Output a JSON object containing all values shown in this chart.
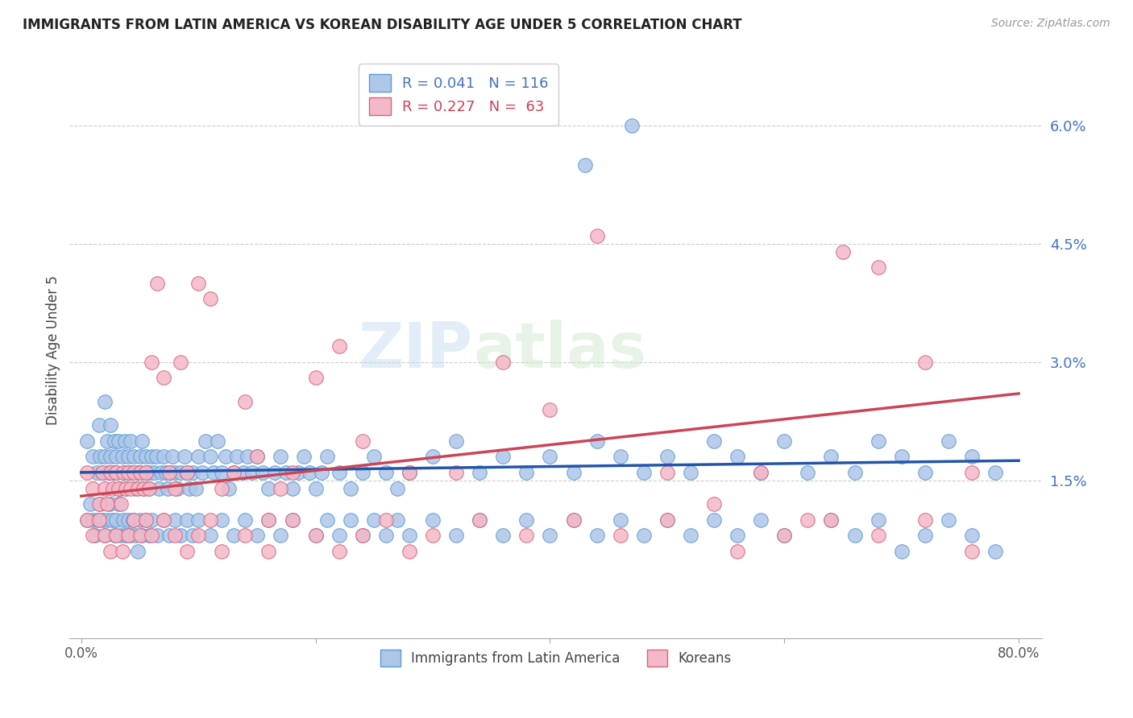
{
  "title": "IMMIGRANTS FROM LATIN AMERICA VS KOREAN DISABILITY AGE UNDER 5 CORRELATION CHART",
  "source": "Source: ZipAtlas.com",
  "ylabel": "Disability Age Under 5",
  "series1_label": "Immigrants from Latin America",
  "series2_label": "Koreans",
  "series1_color": "#aec6e8",
  "series2_color": "#f4b8c8",
  "series1_edge": "#5b9bd5",
  "series2_edge": "#d9637a",
  "trendline1_color": "#2255aa",
  "trendline2_color": "#cc4455",
  "watermark_zip": "ZIP",
  "watermark_atlas": "atlas",
  "legend_labels": [
    "R = 0.041   N = 116",
    "R = 0.227   N =  63"
  ],
  "legend_text_colors": [
    "#4472c4",
    "#cc4455"
  ],
  "ytick_vals": [
    0.015,
    0.03,
    0.045,
    0.06
  ],
  "ytick_labels": [
    "1.5%",
    "3.0%",
    "4.5%",
    "6.0%"
  ],
  "xlim": [
    -0.01,
    0.82
  ],
  "ylim": [
    -0.005,
    0.068
  ],
  "blue_x": [
    0.005,
    0.01,
    0.013,
    0.015,
    0.016,
    0.018,
    0.02,
    0.02,
    0.022,
    0.023,
    0.025,
    0.025,
    0.027,
    0.028,
    0.03,
    0.03,
    0.032,
    0.033,
    0.035,
    0.036,
    0.037,
    0.038,
    0.04,
    0.04,
    0.042,
    0.043,
    0.045,
    0.046,
    0.048,
    0.05,
    0.05,
    0.052,
    0.053,
    0.055,
    0.055,
    0.057,
    0.058,
    0.06,
    0.062,
    0.064,
    0.066,
    0.068,
    0.07,
    0.072,
    0.074,
    0.076,
    0.078,
    0.08,
    0.082,
    0.085,
    0.088,
    0.09,
    0.092,
    0.095,
    0.098,
    0.1,
    0.103,
    0.106,
    0.11,
    0.113,
    0.116,
    0.12,
    0.123,
    0.126,
    0.13,
    0.133,
    0.138,
    0.142,
    0.146,
    0.15,
    0.155,
    0.16,
    0.165,
    0.17,
    0.175,
    0.18,
    0.185,
    0.19,
    0.195,
    0.2,
    0.205,
    0.21,
    0.22,
    0.23,
    0.24,
    0.25,
    0.26,
    0.27,
    0.28,
    0.3,
    0.32,
    0.34,
    0.36,
    0.38,
    0.4,
    0.42,
    0.44,
    0.46,
    0.48,
    0.5,
    0.52,
    0.54,
    0.56,
    0.58,
    0.6,
    0.62,
    0.64,
    0.66,
    0.68,
    0.7,
    0.72,
    0.74,
    0.76,
    0.78,
    0.43,
    0.47
  ],
  "blue_y": [
    0.02,
    0.018,
    0.016,
    0.022,
    0.018,
    0.016,
    0.025,
    0.018,
    0.02,
    0.016,
    0.022,
    0.018,
    0.016,
    0.02,
    0.018,
    0.016,
    0.02,
    0.014,
    0.018,
    0.016,
    0.02,
    0.014,
    0.018,
    0.016,
    0.02,
    0.016,
    0.018,
    0.014,
    0.016,
    0.018,
    0.016,
    0.02,
    0.014,
    0.018,
    0.016,
    0.014,
    0.016,
    0.018,
    0.016,
    0.018,
    0.014,
    0.016,
    0.018,
    0.016,
    0.014,
    0.016,
    0.018,
    0.016,
    0.014,
    0.016,
    0.018,
    0.016,
    0.014,
    0.016,
    0.014,
    0.018,
    0.016,
    0.02,
    0.018,
    0.016,
    0.02,
    0.016,
    0.018,
    0.014,
    0.016,
    0.018,
    0.016,
    0.018,
    0.016,
    0.018,
    0.016,
    0.014,
    0.016,
    0.018,
    0.016,
    0.014,
    0.016,
    0.018,
    0.016,
    0.014,
    0.016,
    0.018,
    0.016,
    0.014,
    0.016,
    0.018,
    0.016,
    0.014,
    0.016,
    0.018,
    0.02,
    0.016,
    0.018,
    0.016,
    0.018,
    0.016,
    0.02,
    0.018,
    0.016,
    0.018,
    0.016,
    0.02,
    0.018,
    0.016,
    0.02,
    0.016,
    0.018,
    0.016,
    0.02,
    0.018,
    0.016,
    0.02,
    0.018,
    0.016,
    0.055,
    0.06
  ],
  "blue_x_low": [
    0.005,
    0.008,
    0.01,
    0.012,
    0.014,
    0.016,
    0.018,
    0.02,
    0.022,
    0.024,
    0.026,
    0.028,
    0.03,
    0.032,
    0.034,
    0.036,
    0.038,
    0.04,
    0.042,
    0.044,
    0.046,
    0.048,
    0.05,
    0.052,
    0.055,
    0.058,
    0.06,
    0.065,
    0.07,
    0.075,
    0.08,
    0.085,
    0.09,
    0.095,
    0.1,
    0.11,
    0.12,
    0.13,
    0.14,
    0.15,
    0.16,
    0.17,
    0.18,
    0.2,
    0.21,
    0.22,
    0.23,
    0.24,
    0.25,
    0.26,
    0.27,
    0.28,
    0.3,
    0.32,
    0.34,
    0.36,
    0.38,
    0.4,
    0.42,
    0.44,
    0.46,
    0.48,
    0.5,
    0.52,
    0.54,
    0.56,
    0.58,
    0.6,
    0.64,
    0.66,
    0.68,
    0.7,
    0.72,
    0.74,
    0.76,
    0.78
  ],
  "blue_y_low": [
    0.01,
    0.012,
    0.01,
    0.008,
    0.01,
    0.012,
    0.01,
    0.008,
    0.01,
    0.012,
    0.01,
    0.008,
    0.01,
    0.012,
    0.008,
    0.01,
    0.008,
    0.01,
    0.008,
    0.01,
    0.008,
    0.006,
    0.01,
    0.008,
    0.01,
    0.008,
    0.01,
    0.008,
    0.01,
    0.008,
    0.01,
    0.008,
    0.01,
    0.008,
    0.01,
    0.008,
    0.01,
    0.008,
    0.01,
    0.008,
    0.01,
    0.008,
    0.01,
    0.008,
    0.01,
    0.008,
    0.01,
    0.008,
    0.01,
    0.008,
    0.01,
    0.008,
    0.01,
    0.008,
    0.01,
    0.008,
    0.01,
    0.008,
    0.01,
    0.008,
    0.01,
    0.008,
    0.01,
    0.008,
    0.01,
    0.008,
    0.01,
    0.008,
    0.01,
    0.008,
    0.01,
    0.006,
    0.008,
    0.01,
    0.008,
    0.006
  ],
  "pink_x": [
    0.005,
    0.01,
    0.015,
    0.018,
    0.02,
    0.022,
    0.025,
    0.027,
    0.03,
    0.032,
    0.034,
    0.036,
    0.038,
    0.04,
    0.042,
    0.045,
    0.048,
    0.05,
    0.053,
    0.055,
    0.058,
    0.06,
    0.065,
    0.07,
    0.075,
    0.08,
    0.085,
    0.09,
    0.1,
    0.11,
    0.12,
    0.13,
    0.14,
    0.15,
    0.16,
    0.17,
    0.18,
    0.2,
    0.22,
    0.24,
    0.28,
    0.32,
    0.36,
    0.4,
    0.44,
    0.5,
    0.54,
    0.58,
    0.62,
    0.65,
    0.68,
    0.72,
    0.76
  ],
  "pink_y": [
    0.016,
    0.014,
    0.012,
    0.016,
    0.014,
    0.012,
    0.016,
    0.014,
    0.016,
    0.014,
    0.012,
    0.016,
    0.014,
    0.016,
    0.014,
    0.016,
    0.014,
    0.016,
    0.014,
    0.016,
    0.014,
    0.03,
    0.04,
    0.028,
    0.016,
    0.014,
    0.03,
    0.016,
    0.04,
    0.038,
    0.014,
    0.016,
    0.025,
    0.018,
    0.01,
    0.014,
    0.016,
    0.028,
    0.032,
    0.02,
    0.016,
    0.016,
    0.03,
    0.024,
    0.046,
    0.016,
    0.012,
    0.016,
    0.01,
    0.044,
    0.042,
    0.03,
    0.016
  ],
  "pink_x_low": [
    0.005,
    0.01,
    0.015,
    0.02,
    0.025,
    0.03,
    0.035,
    0.04,
    0.045,
    0.05,
    0.055,
    0.06,
    0.07,
    0.08,
    0.09,
    0.1,
    0.11,
    0.12,
    0.14,
    0.16,
    0.18,
    0.2,
    0.22,
    0.24,
    0.26,
    0.28,
    0.3,
    0.34,
    0.38,
    0.42,
    0.46,
    0.5,
    0.56,
    0.6,
    0.64,
    0.68,
    0.72,
    0.76
  ],
  "pink_y_low": [
    0.01,
    0.008,
    0.01,
    0.008,
    0.006,
    0.008,
    0.006,
    0.008,
    0.01,
    0.008,
    0.01,
    0.008,
    0.01,
    0.008,
    0.006,
    0.008,
    0.01,
    0.006,
    0.008,
    0.006,
    0.01,
    0.008,
    0.006,
    0.008,
    0.01,
    0.006,
    0.008,
    0.01,
    0.008,
    0.01,
    0.008,
    0.01,
    0.006,
    0.008,
    0.01,
    0.008,
    0.01,
    0.006
  ]
}
